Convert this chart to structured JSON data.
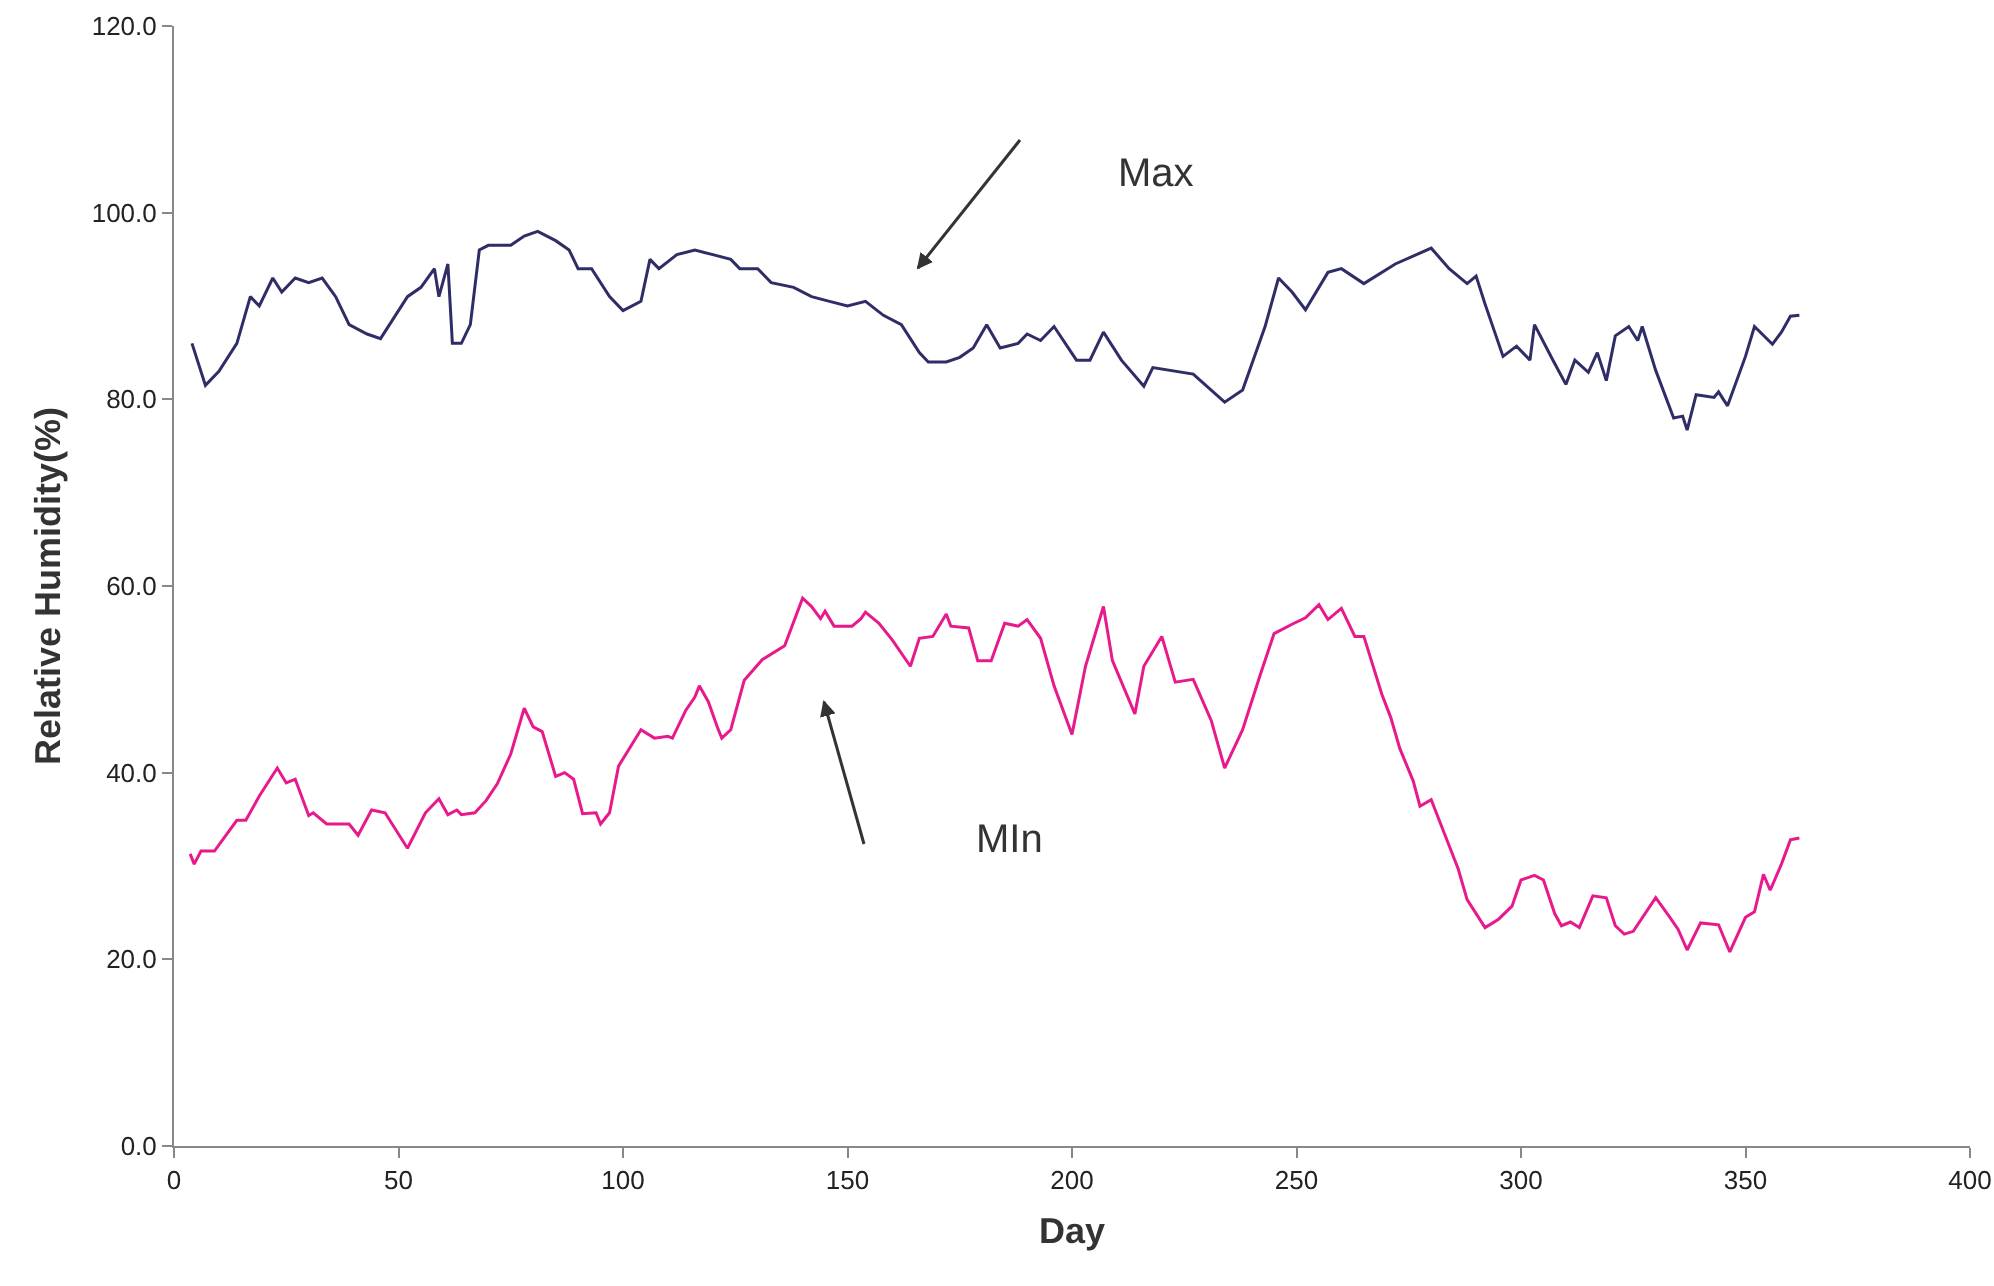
{
  "chart_data": {
    "type": "line",
    "xlabel": "Day",
    "ylabel": "Relative Humidity(%)",
    "xlim": [
      0,
      400
    ],
    "xticks": [
      0,
      50,
      100,
      150,
      200,
      250,
      300,
      350,
      400
    ],
    "ylim": [
      0,
      120
    ],
    "yticks": [
      {
        "value": 0,
        "label": "0.0"
      },
      {
        "value": 20,
        "label": "20.0"
      },
      {
        "value": 40,
        "label": "40.0"
      },
      {
        "value": 60,
        "label": "60.0"
      },
      {
        "value": 80,
        "label": "80.0"
      },
      {
        "value": 100,
        "label": "100.0"
      },
      {
        "value": 120,
        "label": "120.0"
      }
    ],
    "grid": false,
    "marker": "none",
    "line_style": "solid",
    "series": [
      {
        "color": "#2e2d66",
        "x": [
          4,
          7,
          10,
          14,
          17,
          19,
          22,
          24,
          27,
          30,
          33,
          36,
          39,
          43,
          46,
          48,
          52,
          55,
          58,
          59,
          61,
          62,
          64,
          66,
          68,
          70,
          75,
          78,
          81,
          85,
          88,
          90,
          93,
          97,
          100,
          104,
          106,
          108,
          112,
          116,
          120,
          124,
          126,
          130,
          133,
          138,
          142,
          146,
          150,
          154,
          158,
          162,
          166,
          168,
          172,
          175,
          178,
          181,
          184,
          188,
          190,
          193,
          196,
          201,
          204,
          207,
          211,
          216,
          218,
          227,
          234,
          238,
          243,
          246,
          249,
          252,
          257,
          260,
          265,
          272,
          280,
          284,
          288,
          290,
          292,
          296,
          299,
          302,
          303,
          307,
          310,
          312,
          315,
          317,
          319,
          321,
          324,
          326,
          327,
          330,
          334,
          336,
          337,
          339,
          343,
          344,
          346,
          350,
          352,
          356,
          358,
          360,
          362
        ],
        "values": [
          86,
          81.5,
          83,
          86,
          91,
          90,
          93,
          91.5,
          93,
          92.5,
          93,
          91,
          88,
          87,
          86.5,
          88,
          91,
          92,
          94,
          91,
          94.5,
          86,
          86,
          88,
          96,
          96.5,
          96.5,
          97.5,
          98,
          97,
          96,
          94,
          94,
          91,
          89.5,
          90.5,
          95,
          94,
          95.5,
          96,
          95.5,
          95,
          94,
          94,
          92.5,
          92,
          91,
          90.5,
          90,
          90.5,
          89,
          88,
          85,
          84,
          84,
          84.5,
          85.5,
          88,
          85.5,
          86,
          87,
          86.3,
          87.8,
          84.2,
          84.2,
          87.2,
          84.2,
          81.4,
          83.4,
          82.7,
          79.7,
          81,
          87.8,
          93,
          91.5,
          89.6,
          93.6,
          94,
          92.4,
          94.5,
          96.2,
          94,
          92.4,
          93.2,
          90.2,
          84.6,
          85.7,
          84.2,
          88,
          84.3,
          81.6,
          84.2,
          82.9,
          85,
          82,
          86.8,
          87.8,
          86.3,
          87.8,
          83.1,
          78,
          78.2,
          76.7,
          80.5,
          80.2,
          80.8,
          79.3,
          84.6,
          87.8,
          85.9,
          87.2,
          88.9,
          89
        ]
      },
      {
        "color": "#e8198b",
        "x": [
          3.6,
          4.5,
          6,
          9,
          14,
          16,
          19,
          23,
          25,
          27,
          30,
          31,
          34,
          39,
          41,
          44,
          47,
          52,
          56,
          59,
          61,
          63,
          64,
          67,
          69.5,
          72,
          75,
          78,
          80,
          82,
          85,
          87,
          89,
          91,
          94,
          95,
          97,
          99,
          104,
          107,
          110,
          111,
          114,
          116,
          117,
          119,
          121,
          122,
          124,
          127,
          129,
          131,
          136,
          140,
          142,
          144,
          145,
          147,
          151,
          153,
          154,
          157,
          160,
          164,
          166,
          169,
          172,
          173,
          177,
          179,
          182,
          185,
          188,
          190,
          193,
          196,
          200,
          203,
          207,
          209,
          214,
          216,
          220,
          223,
          227,
          231,
          234,
          238,
          242,
          245,
          249,
          252,
          255,
          257,
          260,
          263,
          265,
          269,
          271,
          273,
          276,
          277.5,
          280,
          283,
          286,
          288,
          292,
          295,
          298,
          300,
          303,
          305,
          307.5,
          309,
          311,
          313,
          316,
          319,
          321,
          323,
          325,
          330,
          333,
          335,
          337,
          340,
          344,
          346.5,
          350,
          352,
          354,
          355.5,
          358,
          360,
          362
        ],
        "values": [
          31.3,
          30.2,
          31.6,
          31.6,
          34.9,
          34.9,
          37.5,
          40.5,
          38.9,
          39.3,
          35.4,
          35.7,
          34.5,
          34.5,
          33.3,
          36,
          35.7,
          31.9,
          35.7,
          37.2,
          35.5,
          36,
          35.5,
          35.7,
          37,
          38.8,
          42,
          46.9,
          44.9,
          44.4,
          39.6,
          40,
          39.3,
          35.6,
          35.7,
          34.5,
          35.7,
          40.7,
          44.6,
          43.7,
          43.9,
          43.7,
          46.7,
          48.1,
          49.3,
          47.6,
          44.9,
          43.7,
          44.6,
          49.9,
          51,
          52.1,
          53.6,
          58.7,
          57.8,
          56.5,
          57.3,
          55.7,
          55.7,
          56.5,
          57.2,
          56,
          54.2,
          51.4,
          54.4,
          54.6,
          57,
          55.7,
          55.5,
          52,
          52,
          56,
          55.7,
          56.4,
          54.4,
          49.3,
          44.1,
          51.4,
          57.8,
          52,
          46.3,
          51.4,
          54.6,
          49.7,
          50,
          45.6,
          40.5,
          44.6,
          50.6,
          54.9,
          55.9,
          56.6,
          58,
          56.4,
          57.6,
          54.6,
          54.6,
          48.4,
          45.9,
          42.6,
          39.1,
          36.4,
          37.1,
          33.4,
          29.7,
          26.4,
          23.4,
          24.3,
          25.7,
          28.5,
          29,
          28.5,
          24.9,
          23.6,
          24,
          23.4,
          26.8,
          26.6,
          23.6,
          22.7,
          23,
          26.6,
          24.6,
          23.2,
          21,
          23.9,
          23.7,
          20.8,
          24.5,
          25.1,
          29.1,
          27.4,
          30.2,
          32.8,
          33
        ]
      }
    ],
    "annotations": [
      "Max",
      "MIn"
    ]
  }
}
